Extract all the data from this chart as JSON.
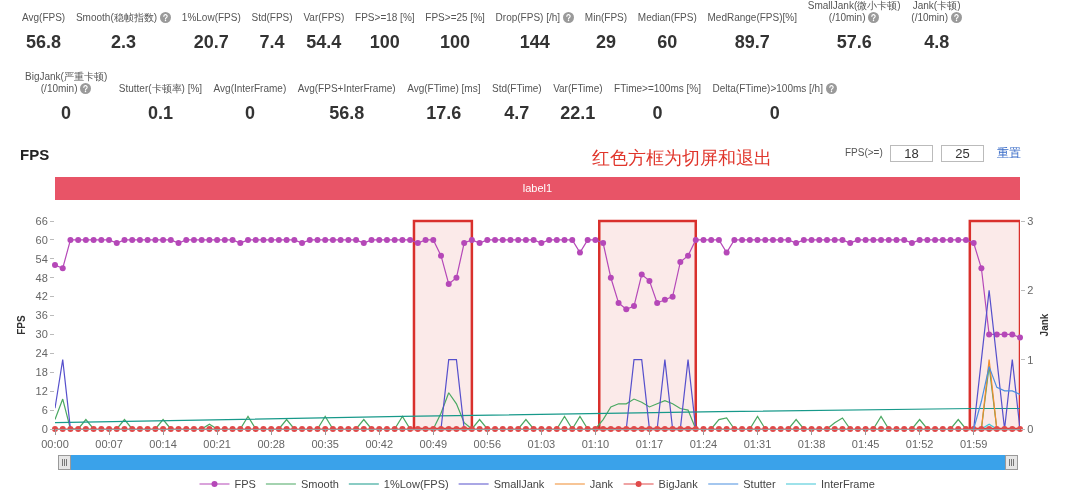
{
  "chart_data": [
    {
      "type": "other",
      "categories": [
        "Avg(FPS)",
        "Smooth(稳帧指数)",
        "1%Low(FPS)",
        "Std(FPS)",
        "Var(FPS)",
        "FPS>=18 [%]",
        "FPS>=25 [%]",
        "Drop(FPS) [/h]",
        "Min(FPS)",
        "Median(FPS)",
        "MedRange(FPS)[%]",
        "SmallJank(微小卡顿)\n(/10min)",
        "Jank(卡顿)\n(/10min)"
      ],
      "values": [
        56.8,
        2.3,
        20.7,
        7.4,
        54.4,
        100,
        100,
        144,
        29,
        60,
        89.7,
        57.6,
        4.8
      ],
      "data_labels": true
    },
    {
      "type": "other",
      "categories": [
        "BigJank(严重卡顿)\n(/10min)",
        "Stutter(卡顿率) [%]",
        "Avg(InterFrame)",
        "Avg(FPS+InterFrame)",
        "Avg(FTime) [ms]",
        "Std(FTime)",
        "Var(FTime)",
        "FTime>=100ms [%]",
        "Delta(FTime)>100ms [/h]"
      ],
      "values": [
        0,
        0.1,
        0,
        56.8,
        17.6,
        4.7,
        22.1,
        0,
        0
      ],
      "data_labels": true
    },
    {
      "type": "line",
      "title": "FPS",
      "ylabel": "FPS",
      "y2label": "Jank",
      "annotations": [
        "红色方框为切屏和退出",
        "FPS(>=)",
        "18",
        "25",
        "重置",
        "label1"
      ],
      "x": [
        0,
        1,
        2,
        3,
        4,
        5,
        6,
        7,
        8,
        9,
        10,
        11,
        12,
        13,
        14,
        15,
        16,
        17,
        18,
        19,
        20,
        21,
        22,
        23,
        24,
        25,
        26,
        27,
        28,
        29,
        30,
        31,
        32,
        33,
        34,
        35,
        36,
        37,
        38,
        39,
        40,
        41,
        42,
        43,
        44,
        45,
        46,
        47,
        48,
        49,
        50,
        51,
        52,
        53,
        54,
        55,
        56,
        57,
        58,
        59,
        60,
        61,
        62,
        63,
        64,
        65,
        66,
        67,
        68,
        69,
        70,
        71,
        72,
        73,
        74,
        75,
        76,
        77,
        78,
        79,
        80,
        81,
        82,
        83,
        84,
        85,
        86,
        87,
        88,
        89,
        90,
        91,
        92,
        93,
        94,
        95,
        96,
        97,
        98,
        99,
        100,
        101,
        102,
        103,
        104,
        105,
        106,
        107,
        108,
        109,
        110,
        111,
        112,
        113,
        114,
        115,
        116,
        117,
        118,
        119,
        120,
        121,
        122,
        123,
        124,
        125
      ],
      "xlim": [
        0,
        125
      ],
      "xticks": [
        {
          "value": 0,
          "label": "00:00"
        },
        {
          "value": 7,
          "label": "00:07"
        },
        {
          "value": 14,
          "label": "00:14"
        },
        {
          "value": 21,
          "label": "00:21"
        },
        {
          "value": 28,
          "label": "00:28"
        },
        {
          "value": 35,
          "label": "00:35"
        },
        {
          "value": 42,
          "label": "00:42"
        },
        {
          "value": 49,
          "label": "00:49"
        },
        {
          "value": 56,
          "label": "00:56"
        },
        {
          "value": 63,
          "label": "01:03"
        },
        {
          "value": 70,
          "label": "01:10"
        },
        {
          "value": 77,
          "label": "01:17"
        },
        {
          "value": 84,
          "label": "01:24"
        },
        {
          "value": 91,
          "label": "01:31"
        },
        {
          "value": 98,
          "label": "01:38"
        },
        {
          "value": 105,
          "label": "01:45"
        },
        {
          "value": 112,
          "label": "01:52"
        },
        {
          "value": 119,
          "label": "01:59"
        }
      ],
      "ylim": [
        0,
        66
      ],
      "yticks": [
        0,
        6,
        12,
        18,
        24,
        30,
        36,
        42,
        48,
        54,
        60,
        66
      ],
      "y2lim": [
        0,
        3
      ],
      "y2ticks": [
        0,
        1,
        2,
        3
      ],
      "legend": "bottom",
      "bands": [
        {
          "axis": "x",
          "from": 46.5,
          "to": 54,
          "color": "#d9302c"
        },
        {
          "axis": "x",
          "from": 70.5,
          "to": 83,
          "color": "#d9302c"
        },
        {
          "axis": "x",
          "from": 118.5,
          "to": 125,
          "color": "#d9302c"
        }
      ],
      "series": [
        {
          "name": "FPS",
          "color": "#b548b8",
          "marker": "circle",
          "values": [
            52,
            51,
            60,
            60,
            60,
            60,
            60,
            60,
            59,
            60,
            60,
            60,
            60,
            60,
            60,
            60,
            59,
            60,
            60,
            60,
            60,
            60,
            60,
            60,
            59,
            60,
            60,
            60,
            60,
            60,
            60,
            60,
            59,
            60,
            60,
            60,
            60,
            60,
            60,
            60,
            59,
            60,
            60,
            60,
            60,
            60,
            60,
            59,
            60,
            60,
            55,
            46,
            48,
            59,
            60,
            59,
            60,
            60,
            60,
            60,
            60,
            60,
            60,
            59,
            60,
            60,
            60,
            60,
            56,
            60,
            60,
            59,
            48,
            40,
            38,
            39,
            49,
            47,
            40,
            41,
            42,
            53,
            55,
            60,
            60,
            60,
            60,
            56,
            60,
            60,
            60,
            60,
            60,
            60,
            60,
            60,
            59,
            60,
            60,
            60,
            60,
            60,
            60,
            59,
            60,
            60,
            60,
            60,
            60,
            60,
            60,
            59,
            60,
            60,
            60,
            60,
            60,
            60,
            60,
            59,
            51,
            30,
            30,
            30,
            30,
            29
          ]
        },
        {
          "name": "Smooth",
          "color": "#4aa862",
          "values": [
            3,
            9.5,
            0,
            0,
            3,
            0,
            null,
            null,
            0,
            3,
            0,
            null,
            null,
            0,
            3,
            0,
            null,
            null,
            null,
            0,
            1.5,
            0,
            null,
            null,
            0,
            4,
            0,
            null,
            null,
            0,
            3,
            0,
            null,
            null,
            0,
            4,
            0,
            null,
            null,
            0,
            3,
            0,
            null,
            null,
            0,
            4,
            0,
            null,
            null,
            0,
            5,
            11.5,
            8,
            2,
            0,
            3,
            0,
            null,
            null,
            null,
            0,
            3,
            0,
            null,
            null,
            0,
            4,
            0,
            4,
            0,
            0,
            3,
            7,
            8,
            8,
            9.5,
            8.5,
            7,
            8,
            9,
            8,
            6.5,
            6,
            0,
            null,
            0,
            3,
            3.5,
            0,
            null,
            0,
            4,
            0,
            null,
            null,
            0,
            3,
            0,
            null,
            null,
            0,
            2,
            3.5,
            0,
            null,
            null,
            0,
            4,
            0,
            null,
            null,
            0,
            3,
            0,
            null,
            null,
            0,
            3,
            0,
            null,
            0,
            20,
            0,
            null,
            null,
            null
          ]
        },
        {
          "name": "1%Low(FPS)",
          "color": "#17998a",
          "x": [
            0,
            45,
            86,
            119,
            125
          ],
          "values": [
            2,
            4,
            5.5,
            6.5,
            6.5
          ]
        },
        {
          "name": "SmallJank",
          "color": "#5650cc",
          "axis": "y2",
          "values": [
            0.3,
            1,
            0,
            null,
            null,
            null,
            null,
            null,
            null,
            null,
            null,
            null,
            null,
            null,
            null,
            null,
            null,
            null,
            null,
            null,
            null,
            null,
            null,
            null,
            null,
            null,
            null,
            null,
            null,
            null,
            null,
            null,
            null,
            null,
            null,
            null,
            null,
            null,
            null,
            null,
            null,
            null,
            null,
            null,
            null,
            null,
            null,
            null,
            null,
            null,
            0,
            1,
            1,
            0,
            null,
            null,
            null,
            null,
            null,
            null,
            null,
            null,
            null,
            null,
            null,
            null,
            null,
            null,
            null,
            null,
            null,
            null,
            null,
            null,
            0,
            1,
            1,
            0,
            0,
            1,
            0,
            0,
            1,
            0,
            null,
            null,
            null,
            null,
            null,
            null,
            null,
            null,
            null,
            null,
            null,
            null,
            null,
            null,
            null,
            null,
            null,
            null,
            null,
            null,
            null,
            null,
            null,
            null,
            null,
            null,
            null,
            null,
            null,
            null,
            null,
            null,
            null,
            null,
            null,
            0,
            1,
            2,
            1,
            0,
            1,
            0
          ]
        },
        {
          "name": "Jank",
          "color": "#f08c2e",
          "axis": "y2",
          "x": [
            120,
            121,
            122
          ],
          "values": [
            0,
            1,
            0
          ]
        },
        {
          "name": "BigJank",
          "color": "#e04a4a",
          "axis": "y2",
          "marker": "circle",
          "values": [
            0,
            0,
            0,
            0,
            0,
            0,
            0,
            0,
            0,
            0,
            0,
            0,
            0,
            0,
            0,
            0,
            0,
            0,
            0,
            0,
            0,
            0,
            0,
            0,
            0,
            0,
            0,
            0,
            0,
            0,
            0,
            0,
            0,
            0,
            0,
            0,
            0,
            0,
            0,
            0,
            0,
            0,
            0,
            0,
            0,
            0,
            0,
            0,
            0,
            0,
            0,
            0,
            0,
            0,
            0,
            0,
            0,
            0,
            0,
            0,
            0,
            0,
            0,
            0,
            0,
            0,
            0,
            0,
            0,
            0,
            0,
            0,
            0,
            0,
            0,
            0,
            0,
            0,
            0,
            0,
            0,
            0,
            0,
            0,
            0,
            0,
            0,
            0,
            0,
            0,
            0,
            0,
            0,
            0,
            0,
            0,
            0,
            0,
            0,
            0,
            0,
            0,
            0,
            0,
            0,
            0,
            0,
            0,
            0,
            0,
            0,
            0,
            0,
            0,
            0,
            0,
            0,
            0,
            0,
            0,
            0,
            0,
            0,
            0,
            0,
            0
          ]
        },
        {
          "name": "Stutter",
          "color": "#4a8fe0",
          "axis": "y2",
          "x": [
            119,
            120,
            121,
            122,
            123,
            124,
            125
          ],
          "values": [
            0,
            0.4,
            0.9,
            0.6,
            0.55,
            0.55,
            0.5
          ]
        },
        {
          "name": "InterFrame",
          "color": "#3ec6d6",
          "x": [
            120,
            121,
            122
          ],
          "values": [
            0,
            1.5,
            0
          ]
        }
      ]
    }
  ]
}
